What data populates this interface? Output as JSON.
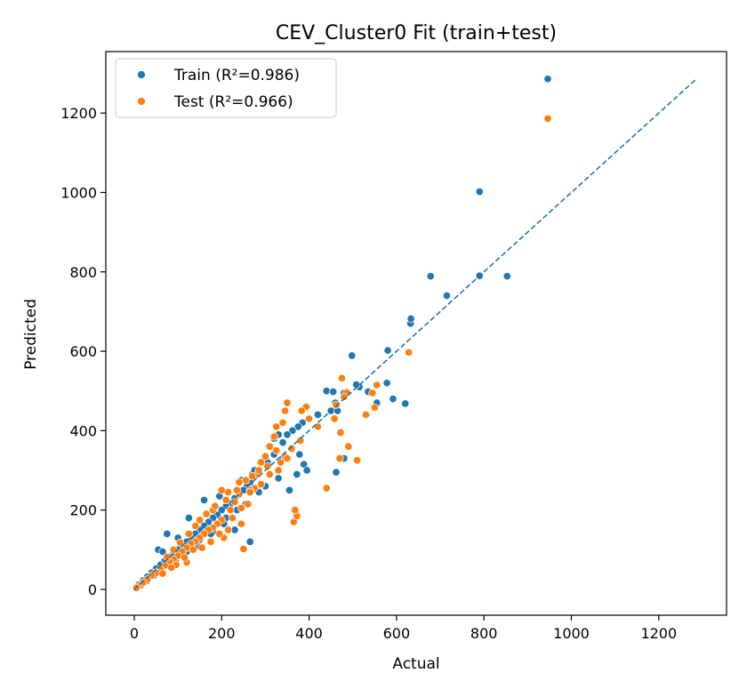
{
  "chart_data": {
    "type": "scatter",
    "title": "CEV_Cluster0 Fit (train+test)",
    "xlabel": "Actual",
    "ylabel": "Predicted",
    "xlim": [
      -65,
      1355
    ],
    "ylim": [
      -65,
      1355
    ],
    "xticks": [
      0,
      200,
      400,
      600,
      800,
      1000,
      1200
    ],
    "yticks": [
      0,
      200,
      400,
      600,
      800,
      1000,
      1200
    ],
    "grid": false,
    "legend_position": "top-left",
    "reference_line": {
      "label": "",
      "x": [
        0,
        1285
      ],
      "y": [
        0,
        1285
      ],
      "style": "dashed",
      "color": "#1f77b4"
    },
    "series": [
      {
        "name": "Train (R²=0.986)",
        "color": "#1f77b4",
        "points": [
          [
            946,
            1286
          ],
          [
            790,
            1002
          ],
          [
            678,
            789
          ],
          [
            790,
            790
          ],
          [
            853,
            789
          ],
          [
            715,
            740
          ],
          [
            632,
            670
          ],
          [
            633,
            682
          ],
          [
            580,
            602
          ],
          [
            620,
            468
          ],
          [
            498,
            589
          ],
          [
            592,
            480
          ],
          [
            578,
            520
          ],
          [
            555,
            470
          ],
          [
            535,
            498
          ],
          [
            515,
            510
          ],
          [
            508,
            516
          ],
          [
            460,
            470
          ],
          [
            480,
            495
          ],
          [
            450,
            450
          ],
          [
            440,
            500
          ],
          [
            455,
            498
          ],
          [
            465,
            450
          ],
          [
            420,
            440
          ],
          [
            400,
            430
          ],
          [
            395,
            460
          ],
          [
            385,
            420
          ],
          [
            375,
            410
          ],
          [
            362,
            400
          ],
          [
            350,
            390
          ],
          [
            340,
            370
          ],
          [
            330,
            390
          ],
          [
            320,
            380
          ],
          [
            308,
            360
          ],
          [
            300,
            335
          ],
          [
            290,
            320
          ],
          [
            280,
            300
          ],
          [
            270,
            290
          ],
          [
            265,
            270
          ],
          [
            258,
            260
          ],
          [
            250,
            250
          ],
          [
            240,
            240
          ],
          [
            230,
            230
          ],
          [
            220,
            215
          ],
          [
            210,
            210
          ],
          [
            200,
            200
          ],
          [
            190,
            188
          ],
          [
            180,
            180
          ],
          [
            170,
            170
          ],
          [
            160,
            160
          ],
          [
            150,
            150
          ],
          [
            140,
            140
          ],
          [
            130,
            130
          ],
          [
            120,
            120
          ],
          [
            110,
            110
          ],
          [
            100,
            100
          ],
          [
            90,
            90
          ],
          [
            80,
            82
          ],
          [
            70,
            72
          ],
          [
            60,
            62
          ],
          [
            50,
            52
          ],
          [
            40,
            42
          ],
          [
            30,
            32
          ],
          [
            20,
            22
          ],
          [
            10,
            12
          ],
          [
            5,
            6
          ],
          [
            160,
            225
          ],
          [
            125,
            180
          ],
          [
            75,
            140
          ],
          [
            55,
            100
          ],
          [
            65,
            95
          ],
          [
            100,
            130
          ],
          [
            355,
            250
          ],
          [
            378,
            340
          ],
          [
            388,
            315
          ],
          [
            462,
            295
          ],
          [
            480,
            330
          ],
          [
            395,
            300
          ],
          [
            265,
            120
          ],
          [
            230,
            150
          ],
          [
            210,
            180
          ],
          [
            180,
            145
          ],
          [
            145,
            110
          ],
          [
            120,
            95
          ],
          [
            195,
            235
          ],
          [
            215,
            245
          ],
          [
            245,
            275
          ],
          [
            275,
            300
          ],
          [
            305,
            320
          ],
          [
            320,
            340
          ],
          [
            340,
            330
          ],
          [
            372,
            290
          ],
          [
            330,
            280
          ],
          [
            300,
            260
          ],
          [
            285,
            245
          ],
          [
            255,
            215
          ],
          [
            235,
            200
          ],
          [
            205,
            165
          ],
          [
            175,
            140
          ],
          [
            150,
            125
          ],
          [
            130,
            105
          ],
          [
            110,
            85
          ],
          [
            95,
            75
          ],
          [
            80,
            60
          ],
          [
            60,
            45
          ],
          [
            45,
            35
          ],
          [
            30,
            22
          ],
          [
            15,
            10
          ]
        ]
      },
      {
        "name": "Test  (R²=0.966)",
        "color": "#ff7f0e",
        "points": [
          [
            946,
            1186
          ],
          [
            628,
            597
          ],
          [
            555,
            515
          ],
          [
            545,
            495
          ],
          [
            550,
            458
          ],
          [
            530,
            440
          ],
          [
            510,
            325
          ],
          [
            490,
            360
          ],
          [
            486,
            496
          ],
          [
            480,
            485
          ],
          [
            475,
            532
          ],
          [
            472,
            395
          ],
          [
            470,
            330
          ],
          [
            462,
            465
          ],
          [
            458,
            430
          ],
          [
            440,
            255
          ],
          [
            420,
            410
          ],
          [
            400,
            430
          ],
          [
            393,
            460
          ],
          [
            383,
            450
          ],
          [
            365,
            170
          ],
          [
            372,
            185
          ],
          [
            368,
            200
          ],
          [
            350,
            470
          ],
          [
            345,
            450
          ],
          [
            340,
            420
          ],
          [
            325,
            410
          ],
          [
            320,
            385
          ],
          [
            310,
            360
          ],
          [
            300,
            335
          ],
          [
            290,
            320
          ],
          [
            282,
            290
          ],
          [
            275,
            255
          ],
          [
            265,
            250
          ],
          [
            250,
            102
          ],
          [
            245,
            165
          ],
          [
            240,
            240
          ],
          [
            230,
            220
          ],
          [
            220,
            200
          ],
          [
            215,
            150
          ],
          [
            205,
            130
          ],
          [
            200,
            175
          ],
          [
            190,
            165
          ],
          [
            180,
            155
          ],
          [
            170,
            150
          ],
          [
            160,
            140
          ],
          [
            150,
            130
          ],
          [
            140,
            120
          ],
          [
            130,
            115
          ],
          [
            120,
            105
          ],
          [
            110,
            95
          ],
          [
            100,
            85
          ],
          [
            90,
            75
          ],
          [
            80,
            70
          ],
          [
            70,
            60
          ],
          [
            60,
            50
          ],
          [
            50,
            42
          ],
          [
            40,
            35
          ],
          [
            30,
            25
          ],
          [
            20,
            17
          ],
          [
            10,
            8
          ],
          [
            5,
            4
          ],
          [
            120,
            68
          ],
          [
            96,
            62
          ],
          [
            180,
            200
          ],
          [
            215,
            245
          ],
          [
            235,
            250
          ],
          [
            255,
            275
          ],
          [
            270,
            285
          ],
          [
            285,
            300
          ],
          [
            305,
            310
          ],
          [
            325,
            350
          ],
          [
            335,
            320
          ],
          [
            345,
            335
          ],
          [
            360,
            355
          ],
          [
            380,
            375
          ],
          [
            260,
            215
          ],
          [
            245,
            205
          ],
          [
            225,
            180
          ],
          [
            195,
            140
          ],
          [
            175,
            120
          ],
          [
            155,
            105
          ],
          [
            135,
            100
          ],
          [
            115,
            80
          ],
          [
            85,
            55
          ],
          [
            65,
            40
          ],
          [
            210,
            225
          ],
          [
            200,
            250
          ],
          [
            185,
            210
          ],
          [
            165,
            190
          ],
          [
            150,
            175
          ],
          [
            140,
            160
          ],
          [
            125,
            140
          ],
          [
            105,
            118
          ],
          [
            90,
            100
          ],
          [
            75,
            82
          ],
          [
            240,
            270
          ],
          [
            265,
            245
          ],
          [
            290,
            265
          ],
          [
            310,
            290
          ],
          [
            330,
            300
          ],
          [
            350,
            330
          ]
        ]
      }
    ]
  }
}
